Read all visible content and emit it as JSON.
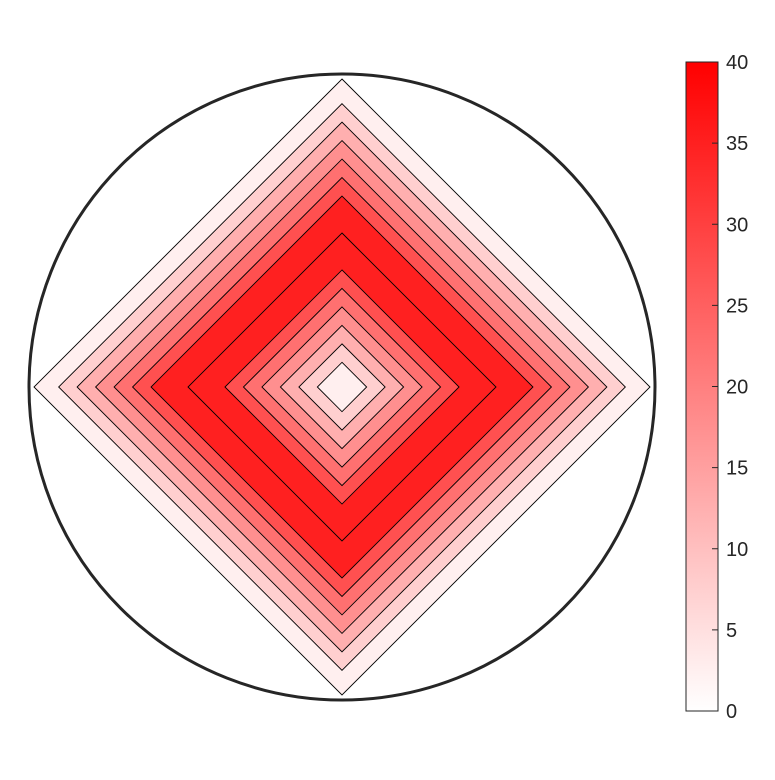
{
  "chart_data": {
    "type": "contour",
    "title": "",
    "xlabel": "",
    "ylabel": "",
    "grid": false,
    "colormap": {
      "low_color": "#ffffff",
      "high_color": "#ff0000"
    },
    "colorbar": {
      "location": "right",
      "range": [
        0,
        40
      ],
      "ticks": [
        0,
        5,
        10,
        15,
        20,
        25,
        30,
        35,
        40
      ],
      "tick_labels": [
        "0",
        "5",
        "10",
        "15",
        "20",
        "25",
        "30",
        "35",
        "40"
      ]
    },
    "contour_levels": [
      {
        "inner_radius": 0.0,
        "outer_radius": 0.08,
        "value": 2.5
      },
      {
        "inner_radius": 0.08,
        "outer_radius": 0.14,
        "value": 7.5
      },
      {
        "inner_radius": 0.14,
        "outer_radius": 0.2,
        "value": 12.5
      },
      {
        "inner_radius": 0.2,
        "outer_radius": 0.26,
        "value": 17.5
      },
      {
        "inner_radius": 0.26,
        "outer_radius": 0.32,
        "value": 22.5
      },
      {
        "inner_radius": 0.32,
        "outer_radius": 0.38,
        "value": 27.5
      },
      {
        "inner_radius": 0.38,
        "outer_radius": 0.5,
        "value": 35.0
      },
      {
        "inner_radius": 0.5,
        "outer_radius": 0.62,
        "value": 35.0
      },
      {
        "inner_radius": 0.62,
        "outer_radius": 0.68,
        "value": 27.5
      },
      {
        "inner_radius": 0.68,
        "outer_radius": 0.74,
        "value": 22.5
      },
      {
        "inner_radius": 0.74,
        "outer_radius": 0.8,
        "value": 17.5
      },
      {
        "inner_radius": 0.8,
        "outer_radius": 0.86,
        "value": 12.5
      },
      {
        "inner_radius": 0.86,
        "outer_radius": 0.92,
        "value": 7.5
      },
      {
        "inner_radius": 0.92,
        "outer_radius": 1.0,
        "value": 2.5
      }
    ],
    "domain_outline": "circle",
    "contour_shape": "diamond"
  }
}
